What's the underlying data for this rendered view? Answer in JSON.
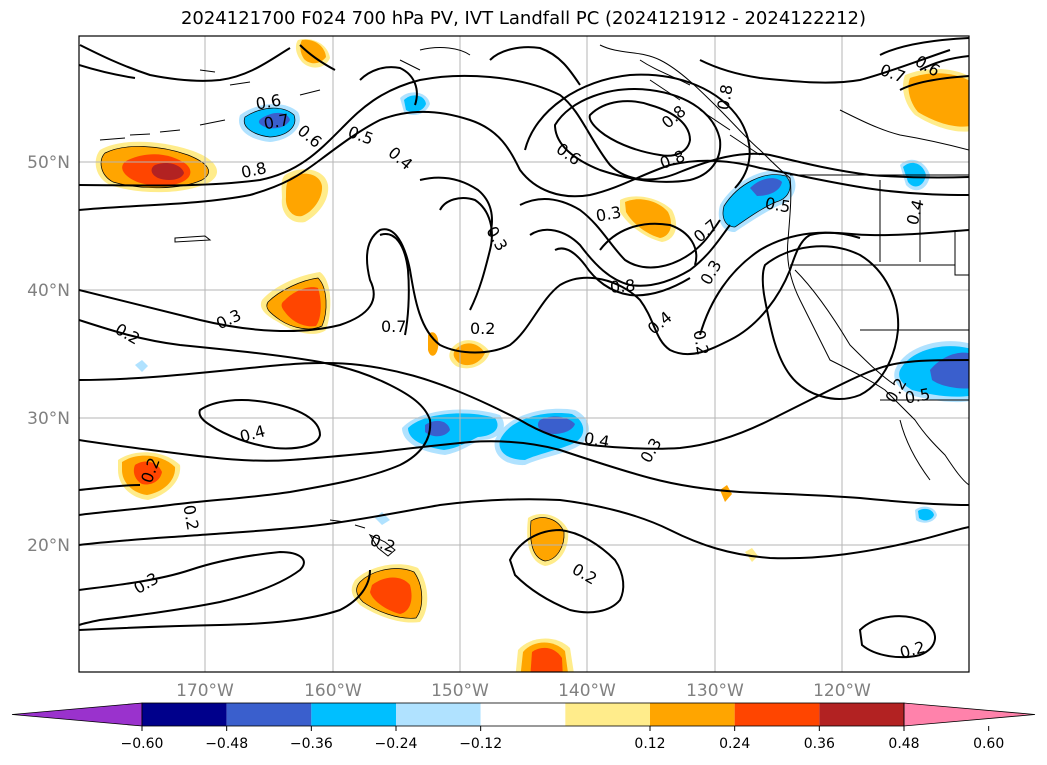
{
  "title": "2024121700 F024 700 hPa PV, IVT Landfall PC (2024121912 - 2024122212)",
  "lon_labels": [
    "170°W",
    "160°W",
    "150°W",
    "140°W",
    "130°W",
    "120°W"
  ],
  "lat_labels": [
    "50°N",
    "40°N",
    "30°N",
    "20°N"
  ],
  "colorbar": {
    "ticks": [
      "−0.60",
      "−0.48",
      "−0.36",
      "−0.24",
      "−0.12",
      "0.12",
      "0.24",
      "0.36",
      "0.48",
      "0.60"
    ],
    "colors": [
      "#9a32cd",
      "#00008b",
      "#3a5fcd",
      "#00bfff",
      "#b0e2ff",
      "#ffffff",
      "#ffec8b",
      "#ffa500",
      "#ff4500",
      "#b22222",
      "#ff82ab"
    ]
  },
  "contour_labels": [
    "0.5",
    "0.6",
    "0.7",
    "0.8",
    "0.6",
    "0.5",
    "0.4",
    "0.8",
    "0.3",
    "0.2",
    "0.3",
    "0.7",
    "0.2",
    "0.4",
    "0.6",
    "0.3",
    "0.8",
    "0.8",
    "0.7",
    "0.8",
    "0.4",
    "0.3",
    "0.5",
    "0.2",
    "0.4",
    "0.3",
    "0.4",
    "0.2",
    "0.2",
    "0.2",
    "0.3",
    "0.2",
    "0.2",
    "0.2",
    "0.7",
    "0.6"
  ]
}
